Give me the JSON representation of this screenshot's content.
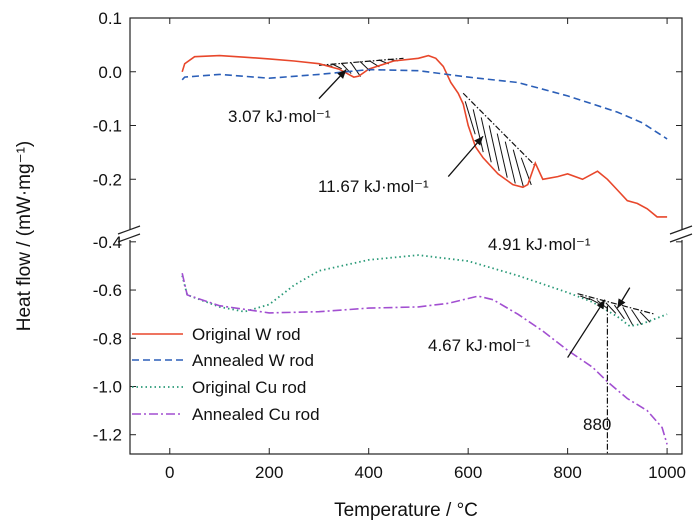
{
  "chart_data": {
    "type": "line",
    "xlabel": "Temperature / °C",
    "ylabel": "Heat flow / (mW·mg⁻¹)",
    "xlim": [
      -80,
      1030
    ],
    "x_ticks": [
      0,
      200,
      400,
      600,
      800,
      1000
    ],
    "broken_y_axis": true,
    "y_upper": {
      "range": [
        -0.3,
        0.1
      ],
      "ticks": [
        "0.1",
        "0.0",
        "-0.1",
        "-0.2"
      ]
    },
    "y_lower": {
      "range": [
        -1.28,
        -0.38
      ],
      "ticks": [
        "-0.4",
        "-0.6",
        "-0.8",
        "-1.0",
        "-1.2"
      ]
    },
    "legend_position": "bottom-left",
    "series": [
      {
        "name": "Original W rod",
        "color": "#e8472b",
        "dash": "solid",
        "panel": "upper",
        "points": [
          [
            25,
            0.0
          ],
          [
            30,
            0.015
          ],
          [
            50,
            0.028
          ],
          [
            100,
            0.03
          ],
          [
            150,
            0.027
          ],
          [
            200,
            0.024
          ],
          [
            250,
            0.02
          ],
          [
            300,
            0.015
          ],
          [
            340,
            0.005
          ],
          [
            360,
            -0.005
          ],
          [
            370,
            -0.01
          ],
          [
            380,
            -0.008
          ],
          [
            400,
            0.005
          ],
          [
            450,
            0.02
          ],
          [
            500,
            0.025
          ],
          [
            520,
            0.03
          ],
          [
            535,
            0.025
          ],
          [
            550,
            0.01
          ],
          [
            565,
            -0.02
          ],
          [
            580,
            -0.04
          ],
          [
            590,
            -0.06
          ],
          [
            600,
            -0.1
          ],
          [
            615,
            -0.14
          ],
          [
            630,
            -0.16
          ],
          [
            660,
            -0.19
          ],
          [
            690,
            -0.21
          ],
          [
            710,
            -0.215
          ],
          [
            720,
            -0.21
          ],
          [
            735,
            -0.17
          ],
          [
            750,
            -0.2
          ],
          [
            780,
            -0.195
          ],
          [
            800,
            -0.19
          ],
          [
            830,
            -0.2
          ],
          [
            860,
            -0.185
          ],
          [
            880,
            -0.2
          ],
          [
            900,
            -0.22
          ],
          [
            920,
            -0.24
          ],
          [
            940,
            -0.245
          ],
          [
            960,
            -0.255
          ],
          [
            980,
            -0.27
          ],
          [
            1000,
            -0.27
          ]
        ]
      },
      {
        "name": "Annealed W rod",
        "color": "#2b5fb8",
        "dash": "dashed",
        "panel": "upper",
        "points": [
          [
            25,
            -0.015
          ],
          [
            30,
            -0.01
          ],
          [
            100,
            -0.005
          ],
          [
            200,
            -0.012
          ],
          [
            300,
            -0.005
          ],
          [
            400,
            0.004
          ],
          [
            500,
            0.002
          ],
          [
            600,
            -0.01
          ],
          [
            700,
            -0.02
          ],
          [
            800,
            -0.045
          ],
          [
            900,
            -0.075
          ],
          [
            950,
            -0.095
          ],
          [
            1000,
            -0.125
          ]
        ]
      },
      {
        "name": "Original Cu rod",
        "color": "#2a9a78",
        "dash": "dotted",
        "panel": "lower",
        "points": [
          [
            25,
            -0.54
          ],
          [
            35,
            -0.62
          ],
          [
            100,
            -0.67
          ],
          [
            150,
            -0.69
          ],
          [
            200,
            -0.66
          ],
          [
            250,
            -0.58
          ],
          [
            300,
            -0.52
          ],
          [
            400,
            -0.475
          ],
          [
            500,
            -0.455
          ],
          [
            600,
            -0.48
          ],
          [
            700,
            -0.54
          ],
          [
            800,
            -0.61
          ],
          [
            850,
            -0.65
          ],
          [
            900,
            -0.71
          ],
          [
            925,
            -0.75
          ],
          [
            950,
            -0.74
          ],
          [
            975,
            -0.72
          ],
          [
            1000,
            -0.7
          ]
        ]
      },
      {
        "name": "Annealed Cu rod",
        "color": "#a24fd1",
        "dash": "dashdot",
        "panel": "lower",
        "points": [
          [
            25,
            -0.53
          ],
          [
            35,
            -0.62
          ],
          [
            100,
            -0.665
          ],
          [
            200,
            -0.695
          ],
          [
            300,
            -0.69
          ],
          [
            400,
            -0.675
          ],
          [
            500,
            -0.67
          ],
          [
            560,
            -0.655
          ],
          [
            620,
            -0.625
          ],
          [
            650,
            -0.64
          ],
          [
            700,
            -0.7
          ],
          [
            750,
            -0.77
          ],
          [
            800,
            -0.85
          ],
          [
            850,
            -0.92
          ],
          [
            880,
            -0.98
          ],
          [
            920,
            -1.05
          ],
          [
            960,
            -1.1
          ],
          [
            990,
            -1.17
          ],
          [
            1000,
            -1.24
          ]
        ]
      }
    ],
    "annotations": [
      {
        "text": "3.07 kJ·mol⁻¹"
      },
      {
        "text": "11.67 kJ·mol⁻¹"
      },
      {
        "text": "4.91 kJ·mol⁻¹"
      },
      {
        "text": "4.67 kJ·mol⁻¹"
      },
      {
        "text": "880"
      }
    ],
    "shaded_regions": [
      {
        "panel": "upper",
        "baseline": [
          [
            300,
            0.012
          ],
          [
            470,
            0.025
          ]
        ],
        "curve_from": 300,
        "curve_to": 470
      },
      {
        "panel": "upper",
        "baseline": [
          [
            590,
            -0.04
          ],
          [
            735,
            -0.175
          ]
        ],
        "curve_from": 590,
        "curve_to": 735
      },
      {
        "panel": "lower",
        "baseline": [
          [
            820,
            -0.615
          ],
          [
            975,
            -0.7
          ]
        ],
        "curve_from": 820,
        "curve_to": 975,
        "series": 2
      }
    ]
  }
}
